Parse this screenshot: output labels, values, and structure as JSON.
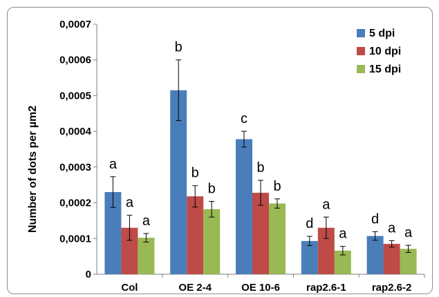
{
  "chart_data": {
    "type": "bar",
    "ylabel": "Number of dots per µm2",
    "ylim": [
      0,
      0.0007
    ],
    "yticks": [
      "0",
      "0,0001",
      "0,0002",
      "0,0003",
      "0,0004",
      "0,0005",
      "0,0006",
      "0,0007"
    ],
    "categories": [
      "Col",
      "OE 2-4",
      "OE 10-6",
      "rap2.6-1",
      "rap2.6-2"
    ],
    "series": [
      {
        "name": "5 dpi",
        "color": "#4a7ebb",
        "values": [
          0.00023,
          0.000515,
          0.000378,
          9.3e-05,
          0.000107
        ],
        "errors": [
          4.3e-05,
          8.5e-05,
          2.2e-05,
          1.3e-05,
          1.2e-05
        ],
        "letters": [
          "a",
          "b",
          "c",
          "d",
          "d"
        ]
      },
      {
        "name": "10 dpi",
        "color": "#be4b48",
        "values": [
          0.00013,
          0.000218,
          0.000228,
          0.00013,
          8.5e-05
        ],
        "errors": [
          3.5e-05,
          3e-05,
          3.5e-05,
          3e-05,
          9e-06
        ],
        "letters": [
          "a",
          "b",
          "b",
          "a",
          "a"
        ]
      },
      {
        "name": "15 dpi",
        "color": "#98b954",
        "values": [
          0.000102,
          0.000182,
          0.000198,
          6.6e-05,
          7.1e-05
        ],
        "errors": [
          1.2e-05,
          2.2e-05,
          1.3e-05,
          1.2e-05,
          1e-05
        ],
        "letters": [
          "a",
          "b",
          "b",
          "a",
          "a"
        ]
      }
    ],
    "legend_position": "top-right",
    "grid": false
  }
}
